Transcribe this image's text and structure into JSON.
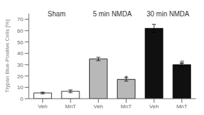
{
  "chart_data": {
    "type": "bar",
    "categories": [
      "Veh",
      "MnT",
      "Veh",
      "MnT",
      "Veh",
      "MnT"
    ],
    "values": [
      5.0,
      6.5,
      35.0,
      17.0,
      62.0,
      30.0
    ],
    "errors": [
      0.8,
      1.2,
      1.5,
      1.5,
      3.5,
      1.5
    ],
    "colors": [
      "white",
      "white",
      "#b8b8b8",
      "#b8b8b8",
      "#101010",
      "#101010"
    ],
    "ylabel": "Trypan Blue-Positive Cells [%]",
    "ylim": [
      0,
      75
    ],
    "yticks": [
      0,
      10,
      20,
      30,
      40,
      50,
      60,
      70
    ],
    "group_labels": {
      "labels": [
        "Sham",
        "5 min NMDA",
        "30 min NMDA"
      ],
      "y": 72
    },
    "annotations": [
      {
        "text": "*",
        "index": 3,
        "y": 19.5
      },
      {
        "text": "#",
        "index": 5,
        "y": 33.0
      }
    ],
    "grid": false
  }
}
